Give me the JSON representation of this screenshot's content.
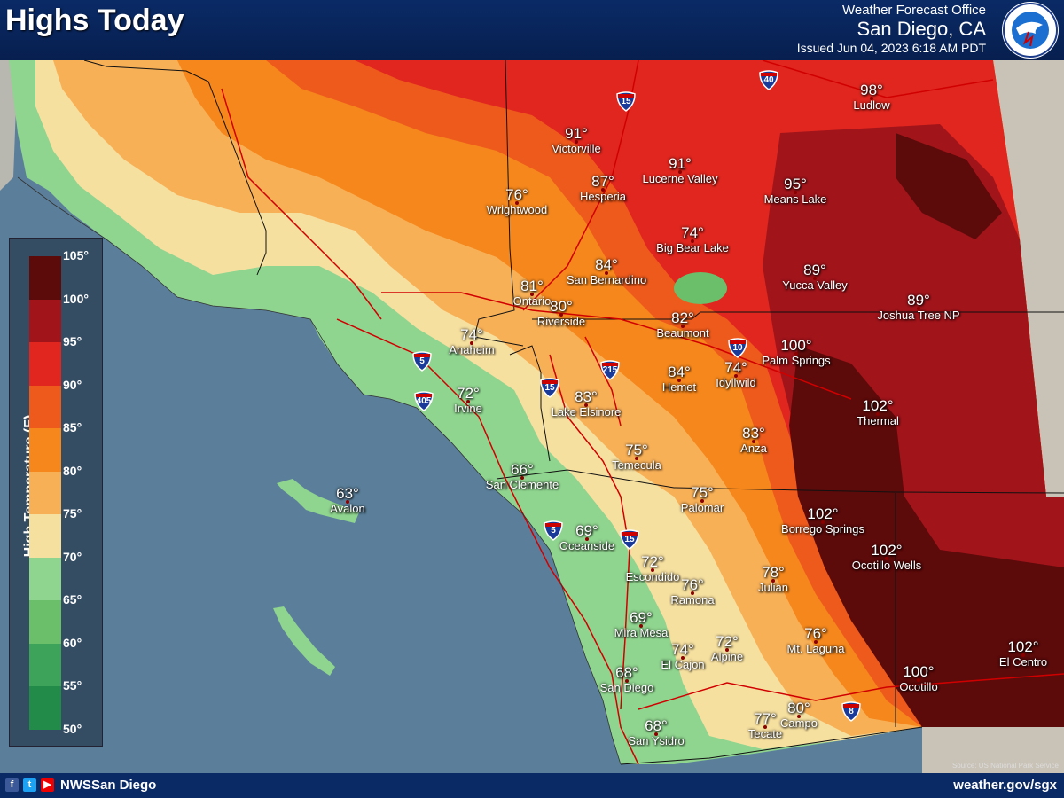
{
  "header": {
    "title": "Highs Today",
    "office_line1": "Weather Forecast Office",
    "office_line2": "San Diego, CA",
    "issued": "Issued Jun 04, 2023 6:18 AM PDT"
  },
  "footer": {
    "handle": "NWSSan Diego",
    "url": "weather.gov/sgx",
    "source": "Source: US National Park Service"
  },
  "legend": {
    "title": "High Temperature (F)",
    "ticks": [
      "105°",
      "100°",
      "95°",
      "90°",
      "85°",
      "80°",
      "75°",
      "70°",
      "65°",
      "60°",
      "55°",
      "50°"
    ],
    "colors": [
      "#5c0a0a",
      "#a0141a",
      "#e0261e",
      "#ee5a1c",
      "#f5871c",
      "#f8b057",
      "#f6e0a0",
      "#8fd48f",
      "#6bbf6b",
      "#3ea35a",
      "#228b4a",
      "#136f3a"
    ]
  },
  "cities": [
    {
      "name": "Victorville",
      "temp": "91°"
    },
    {
      "name": "Ludlow",
      "temp": "98°"
    },
    {
      "name": "Hesperia",
      "temp": "87°"
    },
    {
      "name": "Lucerne Valley",
      "temp": "91°"
    },
    {
      "name": "Means Lake",
      "temp": "95°"
    },
    {
      "name": "Wrightwood",
      "temp": "76°"
    },
    {
      "name": "Big Bear Lake",
      "temp": "74°"
    },
    {
      "name": "San Bernardino",
      "temp": "84°"
    },
    {
      "name": "Yucca Valley",
      "temp": "89°"
    },
    {
      "name": "Ontario",
      "temp": "81°"
    },
    {
      "name": "Riverside",
      "temp": "80°"
    },
    {
      "name": "Beaumont",
      "temp": "82°"
    },
    {
      "name": "Joshua Tree NP",
      "temp": "89°"
    },
    {
      "name": "Anaheim",
      "temp": "74°"
    },
    {
      "name": "Palm Springs",
      "temp": "100°"
    },
    {
      "name": "Hemet",
      "temp": "84°"
    },
    {
      "name": "Idyllwild",
      "temp": "74°"
    },
    {
      "name": "Irvine",
      "temp": "72°"
    },
    {
      "name": "Lake Elsinore",
      "temp": "83°"
    },
    {
      "name": "Thermal",
      "temp": "102°"
    },
    {
      "name": "Anza",
      "temp": "83°"
    },
    {
      "name": "Temecula",
      "temp": "75°"
    },
    {
      "name": "San Clemente",
      "temp": "66°"
    },
    {
      "name": "Avalon",
      "temp": "63°"
    },
    {
      "name": "Palomar",
      "temp": "75°"
    },
    {
      "name": "Borrego Springs",
      "temp": "102°"
    },
    {
      "name": "Oceanside",
      "temp": "69°"
    },
    {
      "name": "Ocotillo Wells",
      "temp": "102°"
    },
    {
      "name": "Escondido",
      "temp": "72°"
    },
    {
      "name": "Ramona",
      "temp": "76°"
    },
    {
      "name": "Julian",
      "temp": "78°"
    },
    {
      "name": "Mira Mesa",
      "temp": "69°"
    },
    {
      "name": "Alpine",
      "temp": "72°"
    },
    {
      "name": "El Cajon",
      "temp": "74°"
    },
    {
      "name": "Mt. Laguna",
      "temp": "76°"
    },
    {
      "name": "El Centro",
      "temp": "102°"
    },
    {
      "name": "San Diego",
      "temp": "68°"
    },
    {
      "name": "Ocotillo",
      "temp": "100°"
    },
    {
      "name": "Campo",
      "temp": "80°"
    },
    {
      "name": "Tecate",
      "temp": "77°"
    },
    {
      "name": "San Ysidro",
      "temp": "68°"
    }
  ],
  "shields": [
    "15",
    "40",
    "5",
    "405",
    "15",
    "215",
    "10",
    "5",
    "15",
    "8"
  ]
}
